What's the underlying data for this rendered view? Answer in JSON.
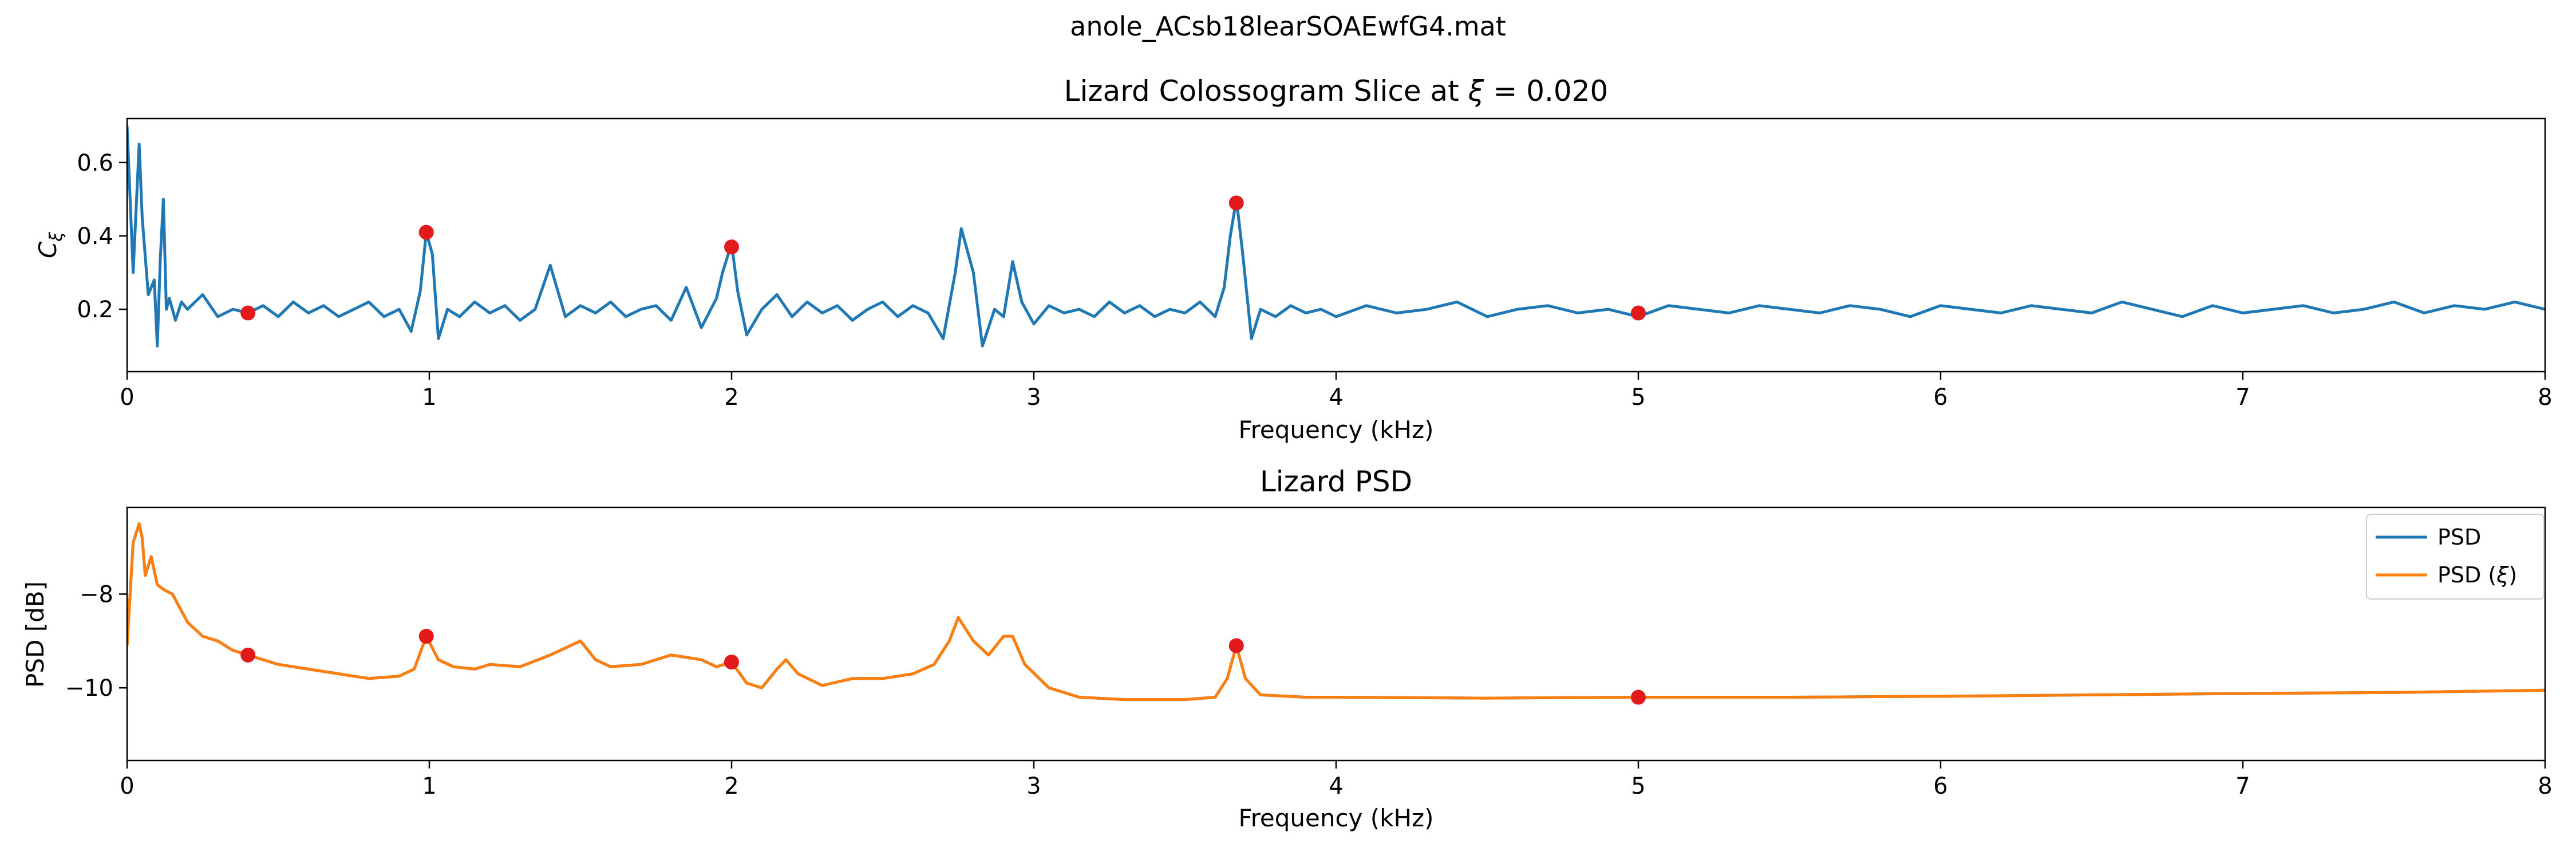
{
  "figure": {
    "suptitle": "anole_ACsb18learSOAEwfG4.mat"
  },
  "chart_data": [
    {
      "type": "line",
      "title_prefix": "Lizard Colossogram Slice at ",
      "title_symbol": "ξ",
      "title_suffix": " = 0.020",
      "xlabel": "Frequency (kHz)",
      "ylabel_main": "C",
      "ylabel_sub": "ξ",
      "xlim": [
        0,
        8
      ],
      "ylim": [
        0.03,
        0.72
      ],
      "xticks": [
        0,
        1,
        2,
        3,
        4,
        5,
        6,
        7,
        8
      ],
      "xtick_labels": [
        "0",
        "1",
        "2",
        "3",
        "4",
        "5",
        "6",
        "7",
        "8"
      ],
      "yticks": [
        0.2,
        0.4,
        0.6
      ],
      "ytick_labels": [
        "0.2",
        "0.4",
        "0.6"
      ],
      "grid": false,
      "colors": {
        "line": "#1f77b4",
        "marker": "#e31a1c"
      },
      "series": [
        {
          "x": [
            0.0,
            0.02,
            0.04,
            0.05,
            0.07,
            0.09,
            0.1,
            0.11,
            0.12,
            0.13,
            0.14,
            0.16,
            0.18,
            0.2,
            0.25,
            0.3,
            0.35,
            0.4,
            0.45,
            0.5,
            0.55,
            0.6,
            0.65,
            0.7,
            0.75,
            0.8,
            0.85,
            0.9,
            0.94,
            0.97,
            0.99,
            1.01,
            1.03,
            1.06,
            1.1,
            1.15,
            1.2,
            1.25,
            1.3,
            1.35,
            1.4,
            1.45,
            1.5,
            1.55,
            1.6,
            1.65,
            1.7,
            1.75,
            1.8,
            1.85,
            1.9,
            1.95,
            1.97,
            2.0,
            2.02,
            2.05,
            2.1,
            2.15,
            2.2,
            2.25,
            2.3,
            2.35,
            2.4,
            2.45,
            2.5,
            2.55,
            2.6,
            2.65,
            2.7,
            2.74,
            2.76,
            2.8,
            2.83,
            2.87,
            2.9,
            2.93,
            2.96,
            3.0,
            3.05,
            3.1,
            3.15,
            3.2,
            3.25,
            3.3,
            3.35,
            3.4,
            3.45,
            3.5,
            3.55,
            3.6,
            3.63,
            3.65,
            3.67,
            3.69,
            3.72,
            3.75,
            3.8,
            3.85,
            3.9,
            3.95,
            4.0,
            4.1,
            4.2,
            4.3,
            4.4,
            4.5,
            4.6,
            4.7,
            4.8,
            4.9,
            5.0,
            5.1,
            5.2,
            5.3,
            5.4,
            5.5,
            5.6,
            5.7,
            5.8,
            5.9,
            6.0,
            6.1,
            6.2,
            6.3,
            6.4,
            6.5,
            6.6,
            6.7,
            6.8,
            6.9,
            7.0,
            7.1,
            7.2,
            7.3,
            7.4,
            7.5,
            7.6,
            7.7,
            7.8,
            7.9,
            8.0
          ],
          "y": [
            0.7,
            0.3,
            0.65,
            0.45,
            0.24,
            0.28,
            0.1,
            0.34,
            0.5,
            0.2,
            0.23,
            0.17,
            0.22,
            0.2,
            0.24,
            0.18,
            0.2,
            0.19,
            0.21,
            0.18,
            0.22,
            0.19,
            0.21,
            0.18,
            0.2,
            0.22,
            0.18,
            0.2,
            0.14,
            0.25,
            0.41,
            0.35,
            0.12,
            0.2,
            0.18,
            0.22,
            0.19,
            0.21,
            0.17,
            0.2,
            0.32,
            0.18,
            0.21,
            0.19,
            0.22,
            0.18,
            0.2,
            0.21,
            0.17,
            0.26,
            0.15,
            0.23,
            0.3,
            0.38,
            0.25,
            0.13,
            0.2,
            0.24,
            0.18,
            0.22,
            0.19,
            0.21,
            0.17,
            0.2,
            0.22,
            0.18,
            0.21,
            0.19,
            0.12,
            0.3,
            0.42,
            0.3,
            0.1,
            0.2,
            0.18,
            0.33,
            0.22,
            0.16,
            0.21,
            0.19,
            0.2,
            0.18,
            0.22,
            0.19,
            0.21,
            0.18,
            0.2,
            0.19,
            0.22,
            0.18,
            0.26,
            0.4,
            0.5,
            0.36,
            0.12,
            0.2,
            0.18,
            0.21,
            0.19,
            0.2,
            0.18,
            0.21,
            0.19,
            0.2,
            0.22,
            0.18,
            0.2,
            0.21,
            0.19,
            0.2,
            0.18,
            0.21,
            0.2,
            0.19,
            0.21,
            0.2,
            0.19,
            0.21,
            0.2,
            0.18,
            0.21,
            0.2,
            0.19,
            0.21,
            0.2,
            0.19,
            0.22,
            0.2,
            0.18,
            0.21,
            0.19,
            0.2,
            0.21,
            0.19,
            0.2,
            0.22,
            0.19,
            0.21,
            0.2,
            0.22,
            0.2
          ]
        }
      ],
      "markers": {
        "x": [
          0.4,
          0.99,
          2.0,
          3.67,
          5.0
        ],
        "y": [
          0.19,
          0.41,
          0.37,
          0.49,
          0.19
        ]
      }
    },
    {
      "type": "line",
      "title": "Lizard PSD",
      "xlabel": "Frequency (kHz)",
      "ylabel": "PSD [dB]",
      "xlim": [
        0,
        8
      ],
      "ylim": [
        -11.55,
        -6.15
      ],
      "xticks": [
        0,
        1,
        2,
        3,
        4,
        5,
        6,
        7,
        8
      ],
      "xtick_labels": [
        "0",
        "1",
        "2",
        "3",
        "4",
        "5",
        "6",
        "7",
        "8"
      ],
      "yticks": [
        -10,
        -8
      ],
      "ytick_labels": [
        "−10",
        "−8"
      ],
      "grid": false,
      "legend_position": "top-right",
      "colors": {
        "psd": "#1f77b4",
        "psd_xi": "#ff7f0e",
        "marker": "#e31a1c"
      },
      "series": [
        {
          "name": "PSD",
          "name_sub": "",
          "x": [
            0.0,
            0.02,
            0.04,
            0.05,
            0.06,
            0.08,
            0.1,
            0.12,
            0.15,
            0.2,
            0.25,
            0.3,
            0.35,
            0.4,
            0.5,
            0.6,
            0.7,
            0.8,
            0.9,
            0.95,
            0.99,
            1.03,
            1.08,
            1.15,
            1.2,
            1.3,
            1.4,
            1.5,
            1.55,
            1.6,
            1.7,
            1.8,
            1.85,
            1.9,
            1.95,
            2.0,
            2.05,
            2.1,
            2.15,
            2.18,
            2.22,
            2.3,
            2.4,
            2.5,
            2.6,
            2.67,
            2.72,
            2.75,
            2.8,
            2.85,
            2.9,
            2.93,
            2.97,
            3.05,
            3.15,
            3.3,
            3.4,
            3.5,
            3.6,
            3.64,
            3.67,
            3.7,
            3.75,
            3.9,
            4.0,
            4.5,
            5.0,
            5.5,
            6.0,
            6.5,
            7.0,
            7.5,
            8.0
          ],
          "y": [
            -9.1,
            -6.9,
            -6.5,
            -6.8,
            -7.6,
            -7.2,
            -7.8,
            -7.9,
            -8.0,
            -8.6,
            -8.9,
            -9.0,
            -9.2,
            -9.3,
            -9.5,
            -9.6,
            -9.7,
            -9.8,
            -9.75,
            -9.6,
            -8.9,
            -9.4,
            -9.55,
            -9.6,
            -9.5,
            -9.55,
            -9.3,
            -9.0,
            -9.4,
            -9.55,
            -9.5,
            -9.3,
            -9.35,
            -9.4,
            -9.55,
            -9.45,
            -9.9,
            -10.0,
            -9.6,
            -9.4,
            -9.7,
            -9.95,
            -9.8,
            -9.8,
            -9.7,
            -9.5,
            -9.0,
            -8.5,
            -9.0,
            -9.3,
            -8.9,
            -8.9,
            -9.5,
            -10.0,
            -10.2,
            -10.25,
            -10.25,
            -10.25,
            -10.2,
            -9.8,
            -9.1,
            -9.8,
            -10.15,
            -10.2,
            -10.2,
            -10.22,
            -10.2,
            -10.2,
            -10.18,
            -10.15,
            -10.12,
            -10.1,
            -10.05
          ]
        },
        {
          "name": "PSD (",
          "name_sub": "ξ",
          "name_suffix": ")",
          "same_as": 0
        }
      ],
      "markers": {
        "x": [
          0.4,
          0.99,
          2.0,
          3.67,
          5.0
        ],
        "y": [
          -9.3,
          -8.9,
          -9.45,
          -9.1,
          -10.2
        ]
      }
    }
  ]
}
